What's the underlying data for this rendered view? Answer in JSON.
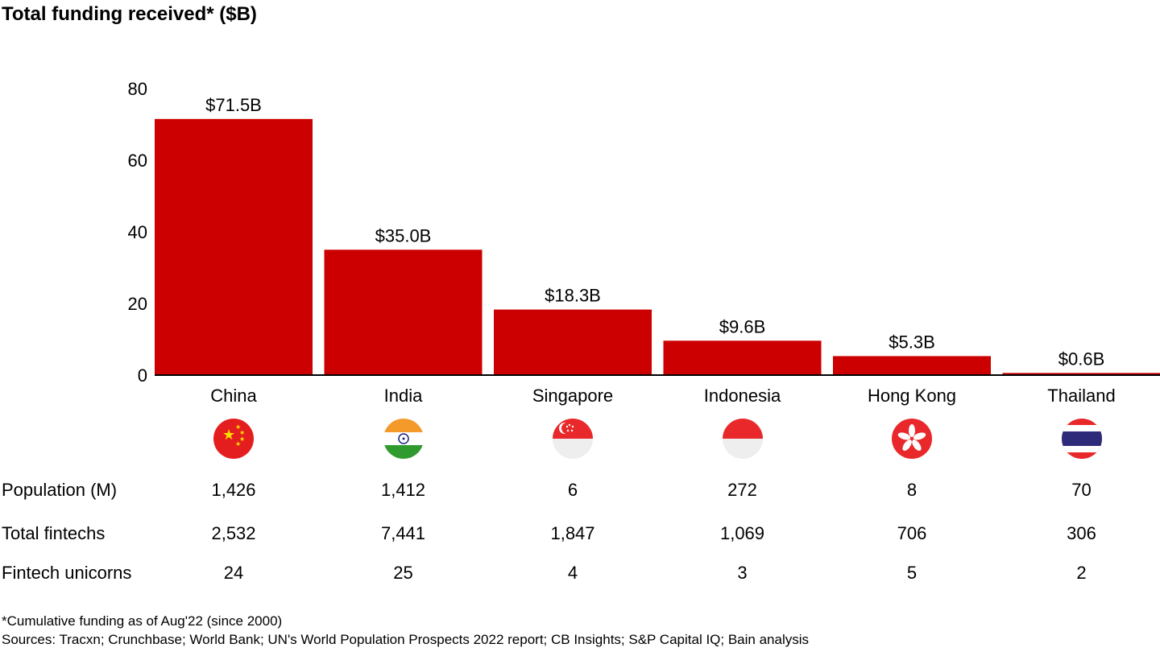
{
  "chart_data": {
    "type": "bar",
    "title": "Total funding received* ($B)",
    "categories": [
      "China",
      "India",
      "Singapore",
      "Indonesia",
      "Hong Kong",
      "Thailand"
    ],
    "values": [
      71.5,
      35.0,
      18.3,
      9.6,
      5.3,
      0.6
    ],
    "data_labels": [
      "$71.5B",
      "$35.0B",
      "$18.3B",
      "$9.6B",
      "$5.3B",
      "$0.6B"
    ],
    "ylim": [
      0,
      80
    ],
    "yticks": [
      0,
      20,
      40,
      60,
      80
    ],
    "bar_color": "#cc0000",
    "grid": false
  },
  "table": {
    "rows": [
      {
        "label": "Population (M)",
        "values": [
          "1,426",
          "1,412",
          "6",
          "272",
          "8",
          "70"
        ]
      },
      {
        "label": "Total fintechs",
        "values": [
          "2,532",
          "7,441",
          "1,847",
          "1,069",
          "706",
          "306"
        ]
      },
      {
        "label": "Fintech unicorns",
        "values": [
          "24",
          "25",
          "4",
          "3",
          "5",
          "2"
        ]
      }
    ]
  },
  "flags": [
    "china-flag-icon",
    "india-flag-icon",
    "singapore-flag-icon",
    "indonesia-flag-icon",
    "hong-kong-flag-icon",
    "thailand-flag-icon"
  ],
  "footnote": "*Cumulative funding as of Aug'22 (since 2000)",
  "sources": "Sources: Tracxn; Crunchbase; World Bank; UN's World Population Prospects 2022 report; CB Insights; S&P Capital IQ; Bain analysis"
}
